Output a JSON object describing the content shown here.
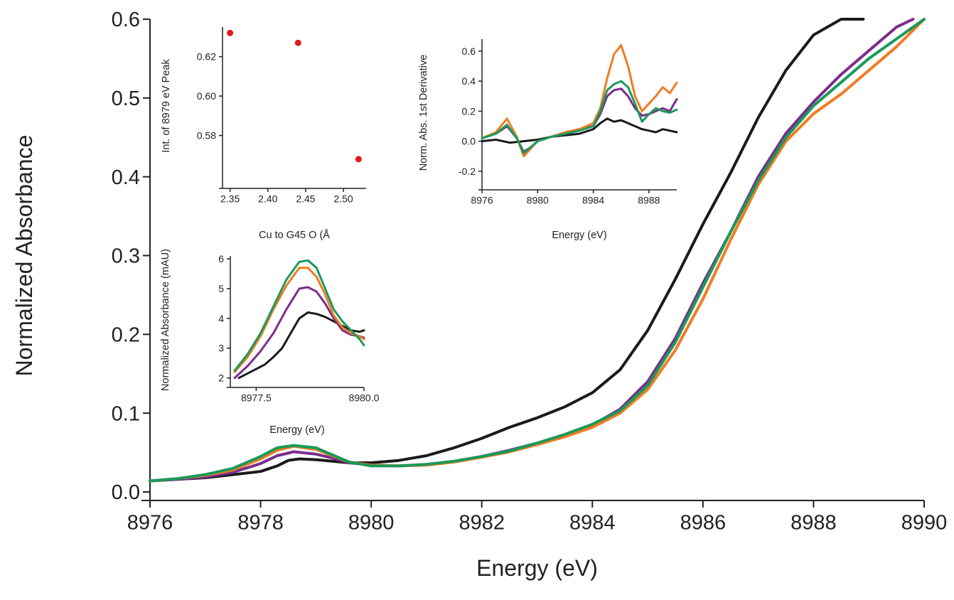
{
  "chart_data": [
    {
      "type": "line",
      "xlabel": "Energy (eV)",
      "ylabel": "Normalized Absorbance",
      "xlim": [
        8976,
        8990
      ],
      "ylim": [
        0,
        0.6
      ],
      "xticks": [
        "8976",
        "8978",
        "8980",
        "8982",
        "8984",
        "8986",
        "8988",
        "8990"
      ],
      "yticks": [
        "0.0",
        "0.1",
        "0.2",
        "0.3",
        "0.4",
        "0.5",
        "0.6"
      ],
      "grid": false,
      "legend": "none",
      "series": [
        {
          "color": "#1a1a1a",
          "x": [
            8976.0,
            8976.5,
            8977.0,
            8977.5,
            8978.0,
            8978.3,
            8978.5,
            8978.7,
            8979.0,
            8979.3,
            8979.6,
            8980.0,
            8980.5,
            8981.0,
            8981.5,
            8982.0,
            8982.5,
            8983.0,
            8983.5,
            8984.0,
            8984.5,
            8985.0,
            8985.5,
            8986.0,
            8986.5,
            8987.0,
            8987.5,
            8988.0,
            8988.5,
            8988.9
          ],
          "values": [
            0.014,
            0.016,
            0.018,
            0.022,
            0.026,
            0.033,
            0.04,
            0.042,
            0.041,
            0.039,
            0.037,
            0.037,
            0.04,
            0.046,
            0.056,
            0.068,
            0.082,
            0.094,
            0.108,
            0.126,
            0.155,
            0.205,
            0.27,
            0.34,
            0.405,
            0.475,
            0.535,
            0.58,
            0.6,
            0.6
          ]
        },
        {
          "color": "#7b2d8b",
          "x": [
            8976.0,
            8976.5,
            8977.0,
            8977.5,
            8978.0,
            8978.3,
            8978.6,
            8979.0,
            8979.3,
            8979.6,
            8980.0,
            8980.5,
            8981.0,
            8981.5,
            8982.0,
            8982.5,
            8983.0,
            8983.5,
            8984.0,
            8984.5,
            8985.0,
            8985.5,
            8986.0,
            8986.5,
            8987.0,
            8987.5,
            8988.0,
            8988.5,
            8989.0,
            8989.5,
            8989.8
          ],
          "values": [
            0.014,
            0.016,
            0.019,
            0.025,
            0.036,
            0.046,
            0.051,
            0.048,
            0.043,
            0.037,
            0.034,
            0.033,
            0.035,
            0.039,
            0.045,
            0.053,
            0.062,
            0.072,
            0.085,
            0.105,
            0.14,
            0.195,
            0.265,
            0.33,
            0.4,
            0.455,
            0.495,
            0.53,
            0.56,
            0.59,
            0.6
          ]
        },
        {
          "color": "#f07c22",
          "x": [
            8976.0,
            8976.5,
            8977.0,
            8977.5,
            8978.0,
            8978.3,
            8978.6,
            8979.0,
            8979.3,
            8979.6,
            8980.0,
            8980.5,
            8981.0,
            8981.5,
            8982.0,
            8982.5,
            8983.0,
            8983.5,
            8984.0,
            8984.5,
            8985.0,
            8985.5,
            8986.0,
            8986.5,
            8987.0,
            8987.5,
            8988.0,
            8988.5,
            8989.0,
            8989.5,
            8990.0
          ],
          "values": [
            0.014,
            0.017,
            0.021,
            0.028,
            0.042,
            0.053,
            0.058,
            0.054,
            0.046,
            0.038,
            0.034,
            0.033,
            0.034,
            0.038,
            0.044,
            0.051,
            0.06,
            0.07,
            0.082,
            0.1,
            0.13,
            0.18,
            0.245,
            0.32,
            0.39,
            0.445,
            0.48,
            0.505,
            0.535,
            0.565,
            0.6
          ]
        },
        {
          "color": "#1a9a5a",
          "x": [
            8976.0,
            8976.5,
            8977.0,
            8977.5,
            8978.0,
            8978.3,
            8978.6,
            8979.0,
            8979.3,
            8979.6,
            8980.0,
            8980.5,
            8981.0,
            8981.5,
            8982.0,
            8982.5,
            8983.0,
            8983.5,
            8984.0,
            8984.5,
            8985.0,
            8985.5,
            8986.0,
            8986.5,
            8987.0,
            8987.5,
            8988.0,
            8988.5,
            8989.0,
            8989.5,
            8990.0
          ],
          "values": [
            0.014,
            0.017,
            0.022,
            0.03,
            0.045,
            0.056,
            0.059,
            0.056,
            0.047,
            0.038,
            0.033,
            0.033,
            0.035,
            0.039,
            0.045,
            0.052,
            0.062,
            0.073,
            0.086,
            0.103,
            0.135,
            0.19,
            0.26,
            0.33,
            0.395,
            0.45,
            0.49,
            0.52,
            0.55,
            0.575,
            0.6
          ]
        }
      ]
    },
    {
      "type": "scatter",
      "xlabel": "Cu to G45 O (Å",
      "ylabel": "Int. of 8979 eV Peak",
      "xlim": [
        2.34,
        2.53
      ],
      "ylim": [
        0.555,
        0.635
      ],
      "xticks": [
        "2.35",
        "2.40",
        "2.45",
        "2.50"
      ],
      "yticks": [
        "0.58",
        "0.60",
        "0.62"
      ],
      "color": "#e31a1c",
      "x": [
        2.35,
        2.44,
        2.52
      ],
      "values": [
        0.632,
        0.627,
        0.568
      ]
    },
    {
      "type": "line",
      "xlabel": "Energy (eV)",
      "ylabel": "Norm. Abs. 1st Derivative",
      "xlim": [
        8976,
        8990
      ],
      "ylim": [
        -0.3,
        0.68
      ],
      "xticks": [
        "8976",
        "8980",
        "8984",
        "8988"
      ],
      "yticks": [
        "-0.2",
        "0.0",
        "0.2",
        "0.4",
        "0.6"
      ],
      "series": [
        {
          "color": "#1a1a1a",
          "x": [
            8976.0,
            8977.0,
            8978.0,
            8979.0,
            8980.0,
            8981.0,
            8982.0,
            8983.0,
            8984.0,
            8984.5,
            8985.0,
            8985.5,
            8986.0,
            8986.5,
            8987.0,
            8987.5,
            8988.0,
            8988.5,
            8989.0,
            8989.5,
            8990.0
          ],
          "values": [
            0.0,
            0.01,
            -0.01,
            0.0,
            0.01,
            0.03,
            0.04,
            0.05,
            0.08,
            0.12,
            0.15,
            0.13,
            0.14,
            0.12,
            0.1,
            0.08,
            0.07,
            0.06,
            0.08,
            0.07,
            0.06
          ]
        },
        {
          "color": "#7b2d8b",
          "x": [
            8976.0,
            8977.0,
            8977.8,
            8978.5,
            8979.0,
            8979.5,
            8980.0,
            8981.0,
            8982.0,
            8983.0,
            8984.0,
            8984.5,
            8985.0,
            8985.5,
            8986.0,
            8986.5,
            8987.0,
            8987.5,
            8988.0,
            8988.5,
            8989.0,
            8989.5,
            8990.0
          ],
          "values": [
            0.02,
            0.05,
            0.1,
            0.02,
            -0.07,
            -0.04,
            0.0,
            0.03,
            0.06,
            0.08,
            0.1,
            0.18,
            0.3,
            0.34,
            0.35,
            0.3,
            0.22,
            0.17,
            0.18,
            0.2,
            0.22,
            0.2,
            0.28
          ]
        },
        {
          "color": "#f07c22",
          "x": [
            8976.0,
            8977.0,
            8977.8,
            8978.5,
            8979.0,
            8979.5,
            8980.0,
            8981.0,
            8982.0,
            8983.0,
            8984.0,
            8984.5,
            8985.0,
            8985.5,
            8986.0,
            8986.5,
            8987.0,
            8987.5,
            8988.0,
            8988.5,
            8989.0,
            8989.5,
            8990.0
          ],
          "values": [
            0.02,
            0.06,
            0.15,
            0.03,
            -0.1,
            -0.05,
            0.0,
            0.03,
            0.06,
            0.08,
            0.12,
            0.22,
            0.42,
            0.58,
            0.64,
            0.5,
            0.3,
            0.2,
            0.25,
            0.3,
            0.36,
            0.32,
            0.39
          ]
        },
        {
          "color": "#1a9a5a",
          "x": [
            8976.0,
            8977.0,
            8977.8,
            8978.5,
            8979.0,
            8979.5,
            8980.0,
            8981.0,
            8982.0,
            8983.0,
            8984.0,
            8984.5,
            8985.0,
            8985.5,
            8986.0,
            8986.5,
            8987.0,
            8987.5,
            8988.0,
            8988.5,
            8989.0,
            8989.5,
            8990.0
          ],
          "values": [
            0.02,
            0.05,
            0.11,
            0.02,
            -0.08,
            -0.04,
            0.0,
            0.03,
            0.05,
            0.07,
            0.1,
            0.2,
            0.34,
            0.38,
            0.4,
            0.36,
            0.25,
            0.13,
            0.18,
            0.22,
            0.2,
            0.19,
            0.21
          ]
        }
      ]
    },
    {
      "type": "line",
      "xlabel": "Energy (eV)",
      "ylabel": "Normalized Absorbance (mAU)",
      "xlim": [
        8976.9,
        8980.0
      ],
      "ylim": [
        1.8,
        6.1
      ],
      "xticks": [
        "8977.5",
        "8980.0"
      ],
      "yticks": [
        "2",
        "3",
        "4",
        "5",
        "6"
      ],
      "series": [
        {
          "color": "#1a1a1a",
          "x": [
            8977.1,
            8977.3,
            8977.5,
            8977.7,
            8977.9,
            8978.1,
            8978.3,
            8978.5,
            8978.7,
            8978.9,
            8979.1,
            8979.3,
            8979.5,
            8979.7,
            8979.9,
            8980.0
          ],
          "values": [
            2.0,
            2.15,
            2.3,
            2.45,
            2.7,
            3.0,
            3.5,
            4.0,
            4.2,
            4.15,
            4.05,
            3.9,
            3.75,
            3.6,
            3.55,
            3.6
          ]
        },
        {
          "color": "#7b2d8b",
          "x": [
            8977.0,
            8977.3,
            8977.6,
            8977.9,
            8978.2,
            8978.5,
            8978.7,
            8978.9,
            8979.1,
            8979.3,
            8979.5,
            8979.7,
            8979.9,
            8980.0
          ],
          "values": [
            2.0,
            2.4,
            2.9,
            3.5,
            4.3,
            5.0,
            5.05,
            4.9,
            4.5,
            4.0,
            3.6,
            3.45,
            3.4,
            3.35
          ]
        },
        {
          "color": "#f07c22",
          "x": [
            8977.0,
            8977.3,
            8977.6,
            8977.9,
            8978.2,
            8978.5,
            8978.7,
            8978.9,
            8979.1,
            8979.3,
            8979.5,
            8979.7,
            8979.9,
            8980.0
          ],
          "values": [
            2.2,
            2.7,
            3.4,
            4.3,
            5.1,
            5.7,
            5.7,
            5.4,
            4.8,
            4.1,
            3.7,
            3.5,
            3.4,
            3.3
          ]
        },
        {
          "color": "#1a9a5a",
          "x": [
            8977.0,
            8977.3,
            8977.6,
            8977.9,
            8978.2,
            8978.5,
            8978.7,
            8978.9,
            8979.1,
            8979.3,
            8979.5,
            8979.7,
            8979.9,
            8980.0
          ],
          "values": [
            2.25,
            2.8,
            3.5,
            4.4,
            5.3,
            5.9,
            5.95,
            5.7,
            5.0,
            4.3,
            3.9,
            3.6,
            3.3,
            3.1
          ]
        }
      ]
    }
  ]
}
